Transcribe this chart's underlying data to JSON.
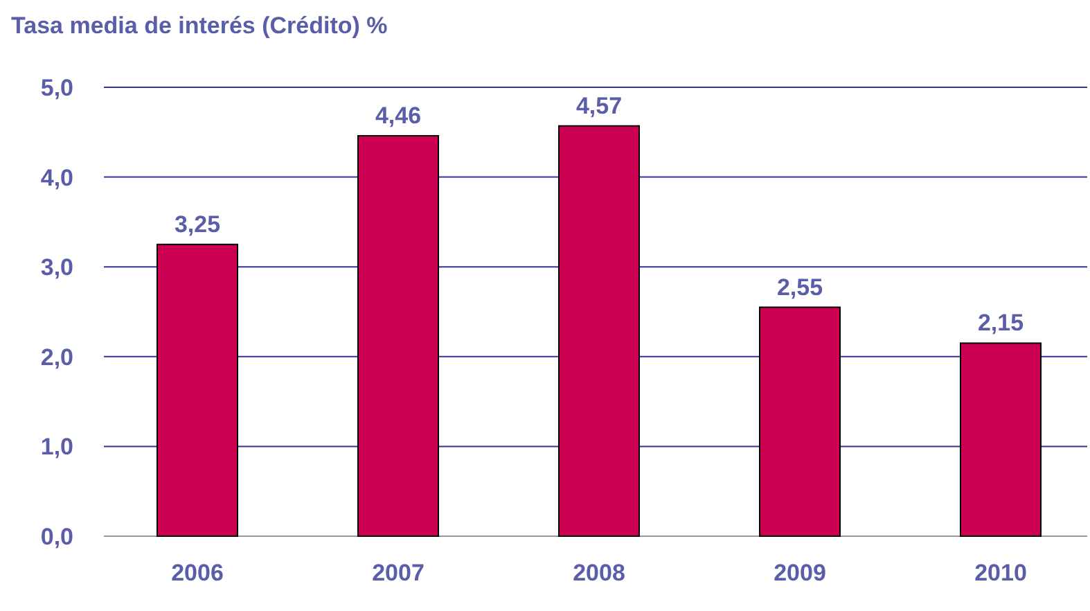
{
  "chart_data": {
    "type": "bar",
    "title": "Tasa media de interés (Crédito) %",
    "categories": [
      "2006",
      "2007",
      "2008",
      "2009",
      "2010"
    ],
    "values": [
      3.25,
      4.46,
      4.57,
      2.55,
      2.15
    ],
    "value_labels": [
      "3,25",
      "4,46",
      "4,57",
      "2,55",
      "2,15"
    ],
    "color": "#cc0052",
    "ylim": [
      0,
      5
    ],
    "yticks": [
      {
        "value": 0,
        "label": "0,0"
      },
      {
        "value": 1,
        "label": "1,0"
      },
      {
        "value": 2,
        "label": "2,0"
      },
      {
        "value": 3,
        "label": "3,0"
      },
      {
        "value": 4,
        "label": "4,0"
      },
      {
        "value": 5,
        "label": "5,0"
      }
    ],
    "grid": "y"
  }
}
